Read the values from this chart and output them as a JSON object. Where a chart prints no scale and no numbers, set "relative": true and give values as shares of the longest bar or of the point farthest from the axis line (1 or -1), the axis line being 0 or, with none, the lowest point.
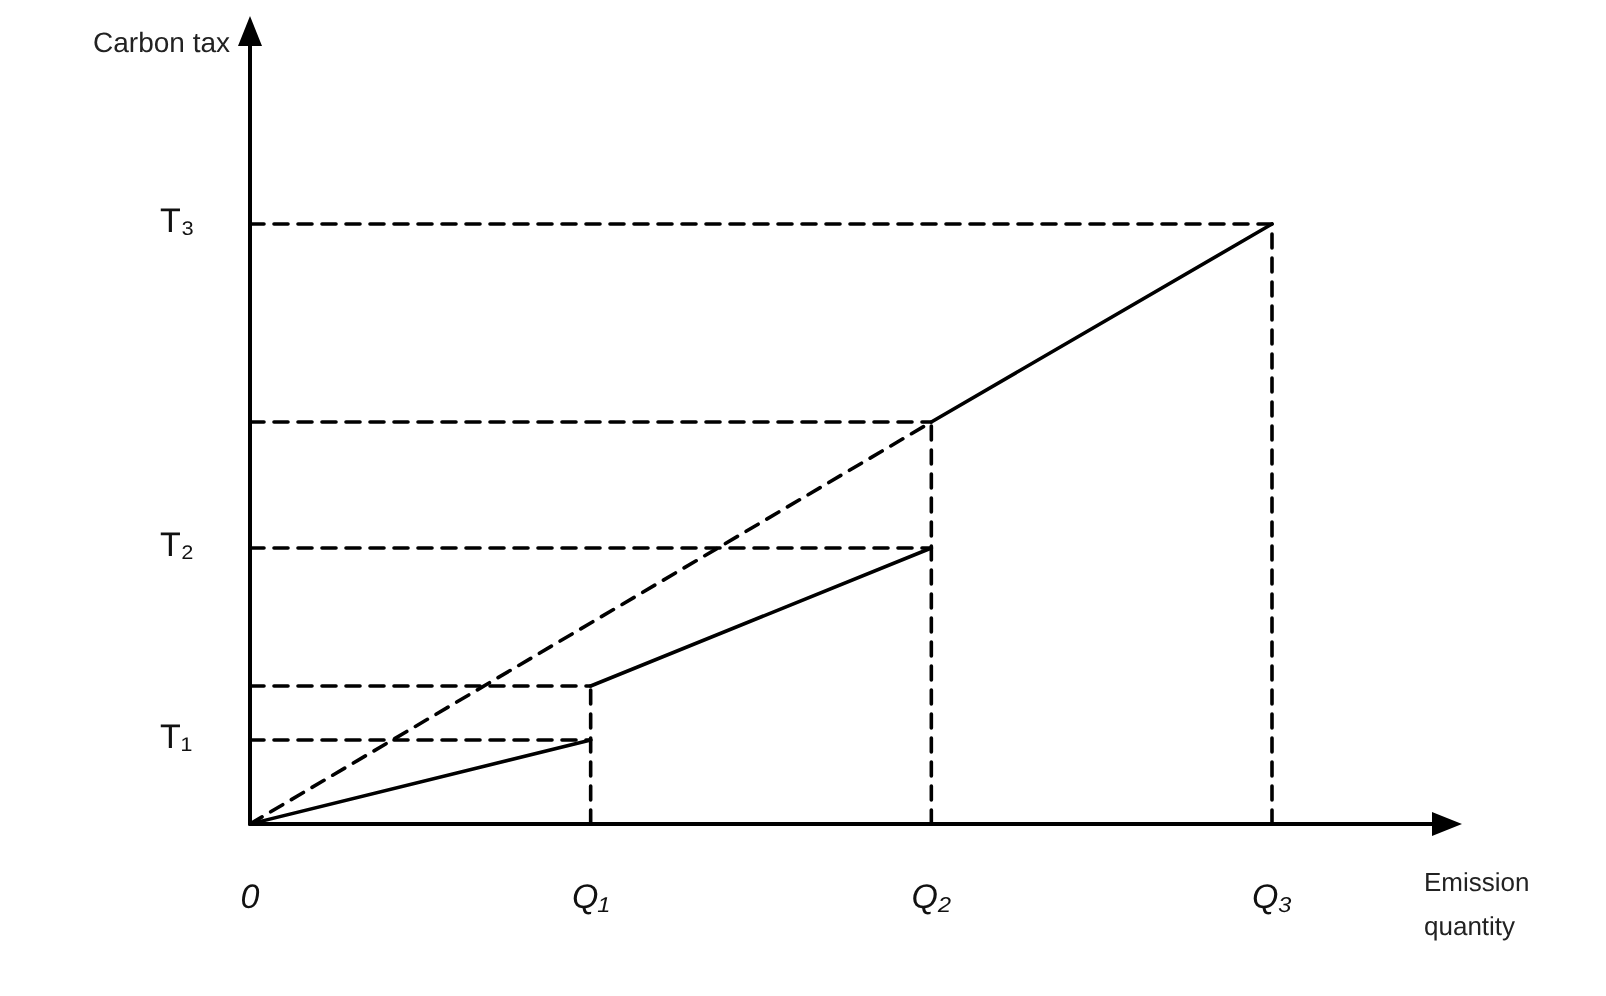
{
  "chart_data": {
    "type": "line",
    "relative": true,
    "categories": [
      "0",
      "Q₁",
      "Q₂",
      "Q₃"
    ],
    "marker": "none",
    "series": [
      {
        "x": [
          "0",
          "Q₁"
        ],
        "values": [
          0,
          0.14
        ],
        "color": "#000000",
        "line_style": "solid"
      },
      {
        "x": [
          "Q₁",
          "Q₂"
        ],
        "values": [
          0.23,
          0.46
        ],
        "color": "#000000",
        "line_style": "solid"
      },
      {
        "x": [
          "Q₂",
          "Q₃"
        ],
        "values": [
          0.67,
          1
        ],
        "color": "#000000",
        "line_style": "solid"
      },
      {
        "x": [
          "0",
          "Q₂"
        ],
        "values": [
          0,
          0.67
        ],
        "color": "#000000",
        "line_style": "dashed"
      },
      {
        "x": [
          "Q₁",
          "Q₁"
        ],
        "values": [
          0,
          0.23
        ],
        "color": "#000000",
        "line_style": "dashed"
      },
      {
        "x": [
          "Q₂",
          "Q₂"
        ],
        "values": [
          0,
          0.67
        ],
        "color": "#000000",
        "line_style": "dashed"
      },
      {
        "x": [
          "Q₃",
          "Q₃"
        ],
        "values": [
          0,
          1
        ],
        "color": "#000000",
        "line_style": "dashed"
      },
      {
        "x": [
          "0",
          "Q₁"
        ],
        "values": [
          0.14,
          0.14
        ],
        "color": "#000000",
        "line_style": "dashed"
      },
      {
        "x": [
          "0",
          "Q₁"
        ],
        "values": [
          0.23,
          0.23
        ],
        "color": "#000000",
        "line_style": "dashed"
      },
      {
        "x": [
          "0",
          "Q₂"
        ],
        "values": [
          0.46,
          0.46
        ],
        "color": "#000000",
        "line_style": "dashed"
      },
      {
        "x": [
          "0",
          "Q₂"
        ],
        "values": [
          0.67,
          0.67
        ],
        "color": "#000000",
        "line_style": "dashed"
      },
      {
        "x": [
          "0",
          "Q₃"
        ],
        "values": [
          1,
          1
        ],
        "color": "#000000",
        "line_style": "dashed"
      }
    ],
    "annotations": [
      "T₁",
      "T₂",
      "T₃",
      "Carbon tax",
      "Emission quantity"
    ]
  }
}
